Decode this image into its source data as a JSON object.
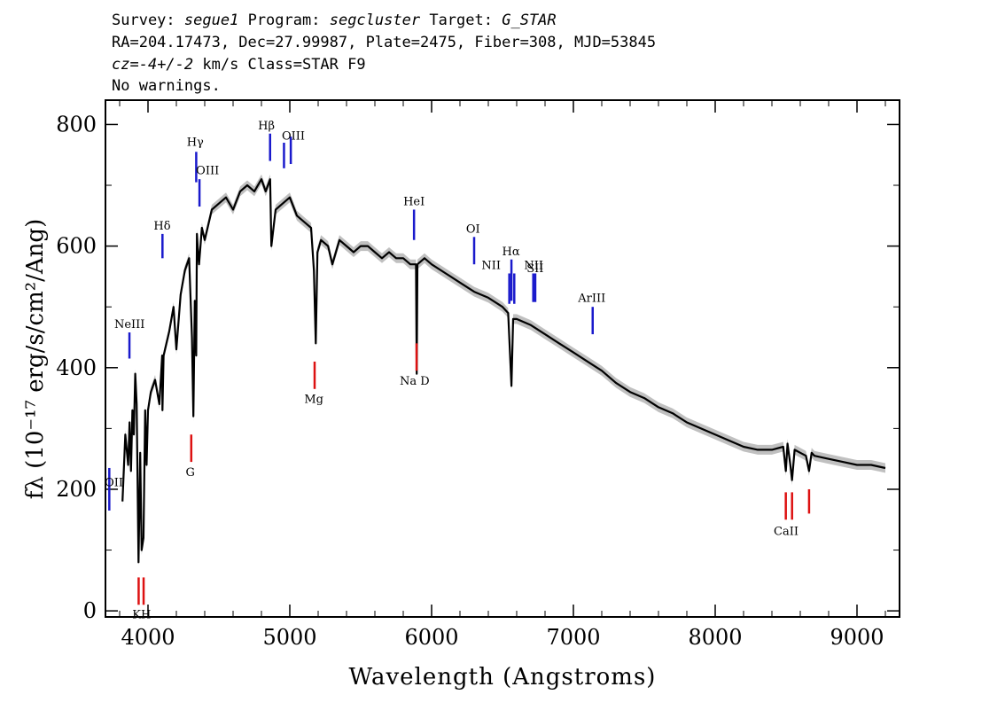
{
  "header": {
    "survey_label": "Survey:",
    "survey": "segue1",
    "program_label": "Program:",
    "program": "segcluster",
    "target_label": "Target:",
    "target": "G_STAR",
    "line2": "RA=204.17473, Dec=27.99987, Plate=2475, Fiber=308, MJD=53845",
    "cz_prefix": "cz=",
    "cz_value": "-4+/-2",
    "cz_suffix": " km/s Class=STAR F9",
    "line4": "No warnings."
  },
  "chart_data": {
    "type": "line",
    "title": "",
    "xlabel": "Wavelength (Angstroms)",
    "ylabel": "fλ (10⁻¹⁷ erg/s/cm²/Ang)",
    "xlim": [
      3700,
      9300
    ],
    "ylim": [
      -10,
      840
    ],
    "x_ticks": [
      4000,
      5000,
      6000,
      7000,
      8000,
      9000
    ],
    "y_ticks": [
      0,
      200,
      400,
      600,
      800
    ],
    "grid": false,
    "colors": {
      "spectrum": "#000000",
      "error_band": "#b0b0b0",
      "emission": "#1a1acc",
      "absorption": "#dd1111"
    },
    "series": [
      {
        "x": [
          3820,
          3840,
          3860,
          3870,
          3880,
          3890,
          3900,
          3910,
          3920,
          3933,
          3945,
          3955,
          3968,
          3980,
          3990,
          4000,
          4020,
          4050,
          4080,
          4100,
          4102,
          4110,
          4130,
          4150,
          4180,
          4200,
          4230,
          4260,
          4290,
          4310,
          4320,
          4330,
          4340,
          4345,
          4350,
          4360,
          4380,
          4400,
          4450,
          4500,
          4550,
          4600,
          4650,
          4700,
          4750,
          4800,
          4830,
          4861,
          4870,
          4900,
          4950,
          5000,
          5050,
          5100,
          5150,
          5170,
          5183,
          5195,
          5220,
          5270,
          5300,
          5350,
          5400,
          5450,
          5500,
          5550,
          5600,
          5650,
          5700,
          5750,
          5800,
          5850,
          5890,
          5895,
          5900,
          5950,
          6000,
          6100,
          6200,
          6300,
          6400,
          6500,
          6540,
          6563,
          6575,
          6600,
          6700,
          6800,
          6900,
          7000,
          7100,
          7200,
          7300,
          7400,
          7500,
          7600,
          7700,
          7800,
          7900,
          8000,
          8100,
          8200,
          8300,
          8400,
          8480,
          8498,
          8510,
          8530,
          8542,
          8560,
          8600,
          8640,
          8662,
          8680,
          8700,
          8800,
          8900,
          9000,
          9100,
          9200
        ],
        "y": [
          180,
          290,
          240,
          310,
          230,
          330,
          290,
          390,
          340,
          80,
          260,
          100,
          120,
          330,
          240,
          330,
          360,
          380,
          340,
          420,
          330,
          420,
          440,
          460,
          500,
          430,
          520,
          560,
          580,
          450,
          320,
          510,
          420,
          620,
          600,
          570,
          630,
          610,
          660,
          670,
          680,
          660,
          690,
          700,
          690,
          710,
          690,
          710,
          600,
          660,
          670,
          680,
          650,
          640,
          630,
          560,
          440,
          590,
          610,
          600,
          570,
          610,
          600,
          590,
          600,
          600,
          590,
          580,
          590,
          580,
          580,
          570,
          570,
          390,
          570,
          580,
          570,
          555,
          540,
          525,
          515,
          500,
          490,
          370,
          480,
          480,
          470,
          455,
          440,
          425,
          410,
          395,
          375,
          360,
          350,
          335,
          325,
          310,
          300,
          290,
          280,
          270,
          265,
          265,
          270,
          230,
          275,
          240,
          215,
          265,
          260,
          255,
          230,
          260,
          255,
          250,
          245,
          240,
          240,
          235
        ]
      }
    ],
    "emission_lines": [
      {
        "label": "OII",
        "x": 3727,
        "y_top": 235,
        "y_bottom": 165
      },
      {
        "label": "NeIII",
        "x": 3869,
        "y_top": 458,
        "y_bottom": 415
      },
      {
        "label": "Hδ",
        "x": 4102,
        "y_top": 620,
        "y_bottom": 580
      },
      {
        "label": "Hγ",
        "x": 4340,
        "y_top": 755,
        "y_bottom": 705
      },
      {
        "label": "OIII",
        "x": 4363,
        "y_top": 710,
        "y_bottom": 665
      },
      {
        "label": "Hβ",
        "x": 4861,
        "y_top": 785,
        "y_bottom": 740
      },
      {
        "label": "OIII",
        "x": 4959,
        "y_top": 770,
        "y_bottom": 728
      },
      {
        "label": "OIII",
        "x": 5007,
        "y_top": 780,
        "y_bottom": 735
      },
      {
        "label": "HeI",
        "x": 5876,
        "y_top": 660,
        "y_bottom": 610
      },
      {
        "label": "OI",
        "x": 6300,
        "y_top": 615,
        "y_bottom": 570
      },
      {
        "label": "NII",
        "x": 6548,
        "y_top": 555,
        "y_bottom": 505
      },
      {
        "label": "Hα",
        "x": 6563,
        "y_top": 578,
        "y_bottom": 510
      },
      {
        "label": "NII",
        "x": 6583,
        "y_top": 555,
        "y_bottom": 505
      },
      {
        "label": "SII",
        "x": 6717,
        "y_top": 555,
        "y_bottom": 508
      },
      {
        "label": "SII",
        "x": 6731,
        "y_top": 555,
        "y_bottom": 508
      },
      {
        "label": "ArIII",
        "x": 7136,
        "y_top": 500,
        "y_bottom": 455
      }
    ],
    "absorption_lines": [
      {
        "label": "K",
        "x": 3934,
        "y_top": 55,
        "y_bottom": 10
      },
      {
        "label": "H",
        "x": 3969,
        "y_top": 55,
        "y_bottom": 10
      },
      {
        "label": "G",
        "x": 4305,
        "y_top": 290,
        "y_bottom": 245
      },
      {
        "label": "Mg",
        "x": 5175,
        "y_top": 410,
        "y_bottom": 365
      },
      {
        "label": "Na D",
        "x": 5894,
        "y_top": 440,
        "y_bottom": 395
      },
      {
        "label": "CaII",
        "x": 8498,
        "y_top": 195,
        "y_bottom": 150
      },
      {
        "label": "CaII",
        "x": 8542,
        "y_top": 195,
        "y_bottom": 150
      },
      {
        "label": "CaII",
        "x": 8662,
        "y_top": 200,
        "y_bottom": 160
      }
    ],
    "labels": [
      {
        "text": "OII",
        "x": 3760,
        "y": 205,
        "kind": "emission"
      },
      {
        "text": "NeIII",
        "x": 3870,
        "y": 465,
        "kind": "emission"
      },
      {
        "text": "Hδ",
        "x": 4100,
        "y": 627,
        "kind": "emission"
      },
      {
        "text": "Hγ",
        "x": 4333,
        "y": 765,
        "kind": "emission"
      },
      {
        "text": "OIII",
        "x": 4420,
        "y": 718,
        "kind": "emission"
      },
      {
        "text": "Hβ",
        "x": 4835,
        "y": 792,
        "kind": "emission"
      },
      {
        "text": "OIII",
        "x": 5025,
        "y": 775,
        "kind": "emission"
      },
      {
        "text": "HeI",
        "x": 5876,
        "y": 667,
        "kind": "emission"
      },
      {
        "text": "OI",
        "x": 6292,
        "y": 622,
        "kind": "emission"
      },
      {
        "text": "NII",
        "x": 6420,
        "y": 562,
        "kind": "emission"
      },
      {
        "text": "Hα",
        "x": 6560,
        "y": 585,
        "kind": "emission"
      },
      {
        "text": "NII",
        "x": 6720,
        "y": 562,
        "kind": "emission"
      },
      {
        "text": "SII",
        "x": 6730,
        "y": 557,
        "kind": "emission"
      },
      {
        "text": "ArIII",
        "x": 7130,
        "y": 508,
        "kind": "emission"
      },
      {
        "text": "KH",
        "x": 3955,
        "y": -12,
        "kind": "absorption"
      },
      {
        "text": "G",
        "x": 4298,
        "y": 222,
        "kind": "absorption"
      },
      {
        "text": "Mg",
        "x": 5170,
        "y": 342,
        "kind": "absorption"
      },
      {
        "text": "Na D",
        "x": 5880,
        "y": 372,
        "kind": "absorption"
      },
      {
        "text": "CaII",
        "x": 8500,
        "y": 125,
        "kind": "absorption"
      }
    ]
  }
}
